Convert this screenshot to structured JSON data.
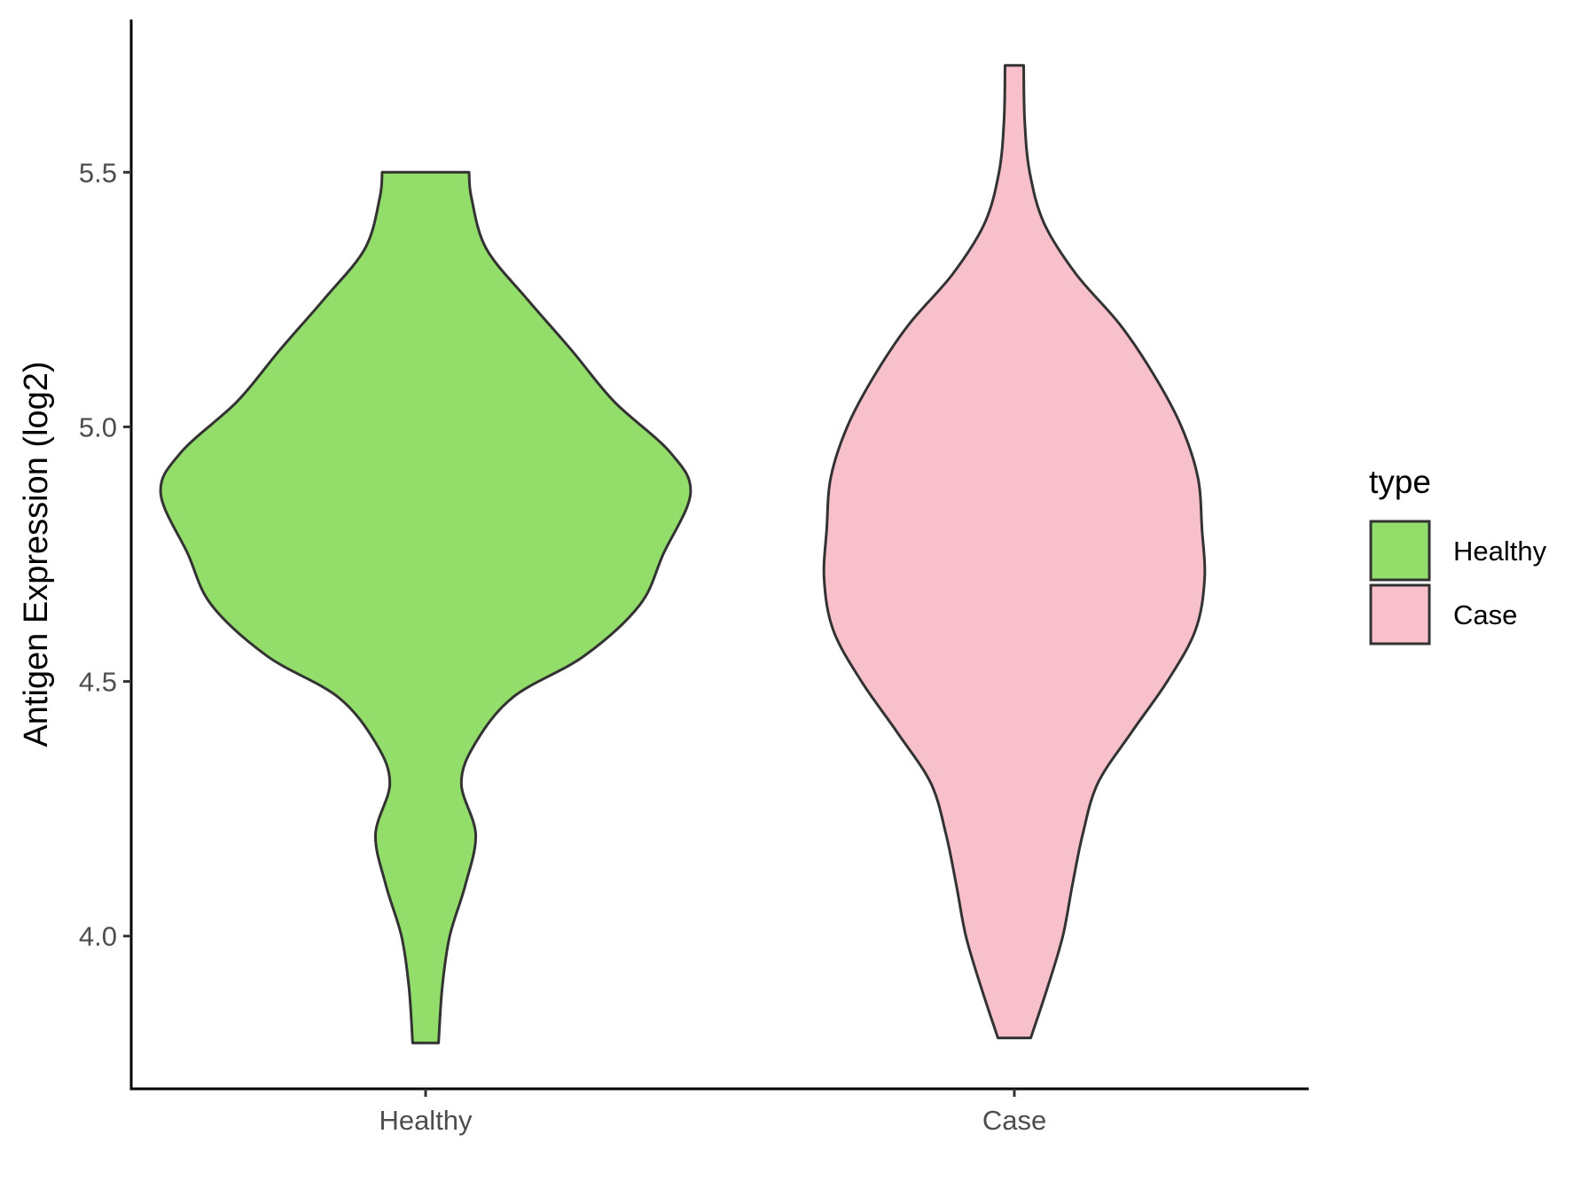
{
  "chart_data": {
    "type": "violin",
    "title": "",
    "xlabel": "",
    "ylabel": "Antigen Expression (log2)",
    "ylim": [
      3.7,
      5.8
    ],
    "yticks": [
      "4.0",
      "4.5",
      "5.0",
      "5.5"
    ],
    "categories": [
      "Healthy",
      "Case"
    ],
    "legend": {
      "title": "type",
      "position": "right",
      "entries": [
        "Healthy",
        "Case"
      ]
    },
    "colors": {
      "Healthy": "#93DD6A",
      "Case": "#F8C0CB",
      "outline": "#333333"
    },
    "series": [
      {
        "name": "Healthy",
        "density": [
          [
            3.79,
            0.049
          ],
          [
            3.9,
            0.063
          ],
          [
            4.0,
            0.091
          ],
          [
            4.1,
            0.15
          ],
          [
            4.2,
            0.189
          ],
          [
            4.3,
            0.135
          ],
          [
            4.38,
            0.189
          ],
          [
            4.47,
            0.332
          ],
          [
            4.55,
            0.598
          ],
          [
            4.65,
            0.808
          ],
          [
            4.75,
            0.897
          ],
          [
            4.87,
            1.0
          ],
          [
            4.95,
            0.923
          ],
          [
            5.05,
            0.711
          ],
          [
            5.15,
            0.552
          ],
          [
            5.25,
            0.385
          ],
          [
            5.35,
            0.229
          ],
          [
            5.45,
            0.173
          ],
          [
            5.5,
            0.164
          ]
        ]
      },
      {
        "name": "Case",
        "density": [
          [
            3.8,
            0.062
          ],
          [
            3.9,
            0.126
          ],
          [
            4.0,
            0.183
          ],
          [
            4.1,
            0.219
          ],
          [
            4.2,
            0.258
          ],
          [
            4.3,
            0.315
          ],
          [
            4.4,
            0.442
          ],
          [
            4.5,
            0.577
          ],
          [
            4.6,
            0.683
          ],
          [
            4.7,
            0.718
          ],
          [
            4.8,
            0.708
          ],
          [
            4.9,
            0.693
          ],
          [
            5.0,
            0.631
          ],
          [
            5.1,
            0.529
          ],
          [
            5.2,
            0.4
          ],
          [
            5.3,
            0.233
          ],
          [
            5.4,
            0.112
          ],
          [
            5.5,
            0.058
          ],
          [
            5.6,
            0.039
          ],
          [
            5.71,
            0.035
          ]
        ]
      }
    ]
  }
}
